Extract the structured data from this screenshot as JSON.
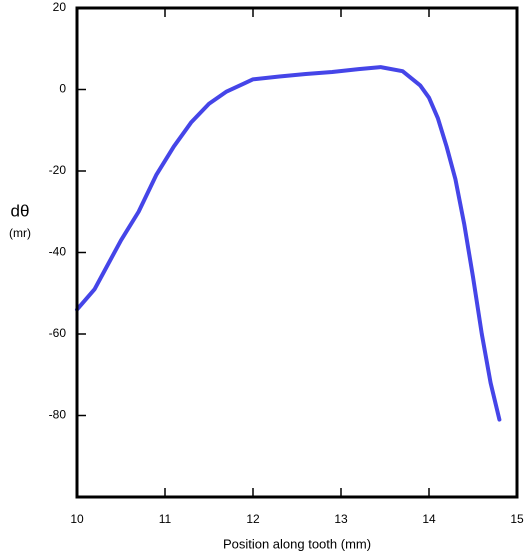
{
  "chart_data": {
    "type": "line",
    "x_label": "Position along tooth (mm)",
    "y_label": "dθ",
    "y_unit": "(mr)",
    "xlim": [
      10,
      15
    ],
    "xticks": [
      10,
      11,
      12,
      13,
      14,
      15
    ],
    "ylim": [
      -100,
      20
    ],
    "yticks": [
      20,
      0,
      -20,
      -40,
      -60,
      -80
    ],
    "series": [
      {
        "color": "#4545e8",
        "x": [
          10.0,
          10.2,
          10.3,
          10.5,
          10.7,
          10.9,
          11.1,
          11.3,
          11.5,
          11.7,
          11.9,
          12.0,
          12.3,
          12.6,
          12.9,
          13.2,
          13.45,
          13.7,
          13.9,
          14.0,
          14.1,
          14.2,
          14.3,
          14.4,
          14.5,
          14.6,
          14.7,
          14.8
        ],
        "values": [
          -54,
          -49,
          -45,
          -37,
          -30,
          -21,
          -14,
          -8,
          -3.5,
          -0.5,
          1.5,
          2.5,
          3.2,
          3.8,
          4.3,
          5,
          5.5,
          4.5,
          1,
          -2,
          -7,
          -14,
          -22,
          -33,
          -46,
          -60,
          -72,
          -81
        ]
      }
    ]
  }
}
